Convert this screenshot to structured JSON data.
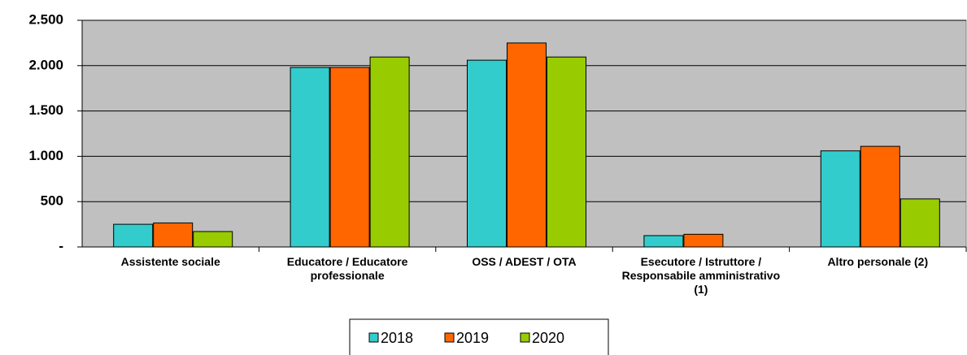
{
  "chart_data": {
    "type": "bar",
    "categories": [
      "Assistente sociale",
      "Educatore / Educatore professionale",
      "OSS / ADEST / OTA",
      "Esecutore / Istruttore / Responsabile amministrativo (1)",
      "Altro personale (2)"
    ],
    "series": [
      {
        "name": "2018",
        "color": "#33cccc",
        "values": [
          250,
          1980,
          2060,
          125,
          1060
        ]
      },
      {
        "name": "2019",
        "color": "#ff6600",
        "values": [
          265,
          1980,
          2250,
          140,
          1110
        ]
      },
      {
        "name": "2020",
        "color": "#99cc00",
        "values": [
          170,
          2095,
          2095,
          0,
          530
        ]
      }
    ],
    "ylim": [
      0,
      2500
    ],
    "yticks": [
      {
        "value": 0,
        "label": "-"
      },
      500,
      {
        "value": 1000,
        "label": "1.000"
      },
      {
        "value": 1500,
        "label": "1.500"
      },
      {
        "value": 2000,
        "label": "2.000"
      },
      {
        "value": 2500,
        "label": "2.500"
      }
    ],
    "grid": true,
    "legend": "bottom"
  }
}
